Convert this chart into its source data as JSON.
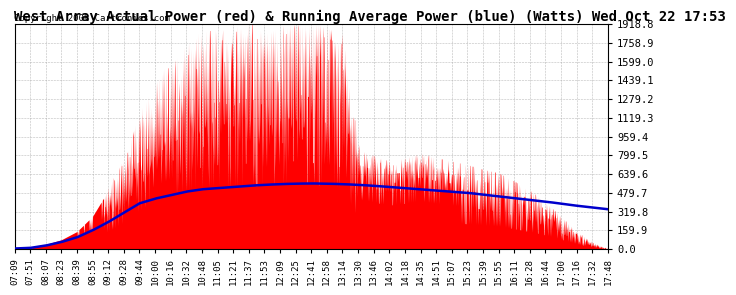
{
  "title": "West Array Actual Power (red) & Running Average Power (blue) (Watts) Wed Oct 22 17:53",
  "copyright": "Copyright 2008 Cartronics.com",
  "yticks": [
    0.0,
    159.9,
    319.8,
    479.7,
    639.6,
    799.5,
    959.4,
    1119.3,
    1279.2,
    1439.1,
    1599.0,
    1758.9,
    1918.8
  ],
  "xtick_labels": [
    "07:09",
    "07:51",
    "08:07",
    "08:23",
    "08:39",
    "08:55",
    "09:12",
    "09:28",
    "09:44",
    "10:00",
    "10:16",
    "10:32",
    "10:48",
    "11:05",
    "11:21",
    "11:37",
    "11:53",
    "12:09",
    "12:25",
    "12:41",
    "12:58",
    "13:14",
    "13:30",
    "13:46",
    "14:02",
    "14:18",
    "14:35",
    "14:51",
    "15:07",
    "15:23",
    "15:39",
    "15:55",
    "16:11",
    "16:28",
    "16:44",
    "17:00",
    "17:16",
    "17:32",
    "17:48"
  ],
  "bg_color": "#ffffff",
  "plot_bg_color": "#ffffff",
  "grid_color": "#aaaaaa",
  "red_color": "#ff0000",
  "blue_color": "#0000cc",
  "title_color": "#000000",
  "title_fontsize": 10,
  "copyright_fontsize": 6.5,
  "ymax": 1918.8,
  "ymin": 0.0,
  "actual_power": [
    5,
    8,
    40,
    80,
    150,
    280,
    500,
    750,
    1100,
    1350,
    1500,
    1650,
    1750,
    1800,
    1750,
    1850,
    1750,
    1800,
    1900,
    1850,
    1800,
    1750,
    850,
    800,
    750,
    780,
    820,
    780,
    750,
    720,
    680,
    650,
    580,
    500,
    400,
    280,
    150,
    60,
    5
  ],
  "running_avg": [
    5,
    10,
    30,
    60,
    100,
    160,
    230,
    310,
    390,
    430,
    460,
    490,
    510,
    520,
    530,
    540,
    548,
    554,
    558,
    560,
    558,
    554,
    548,
    540,
    530,
    520,
    510,
    500,
    490,
    480,
    465,
    450,
    435,
    420,
    405,
    388,
    370,
    355,
    340
  ]
}
